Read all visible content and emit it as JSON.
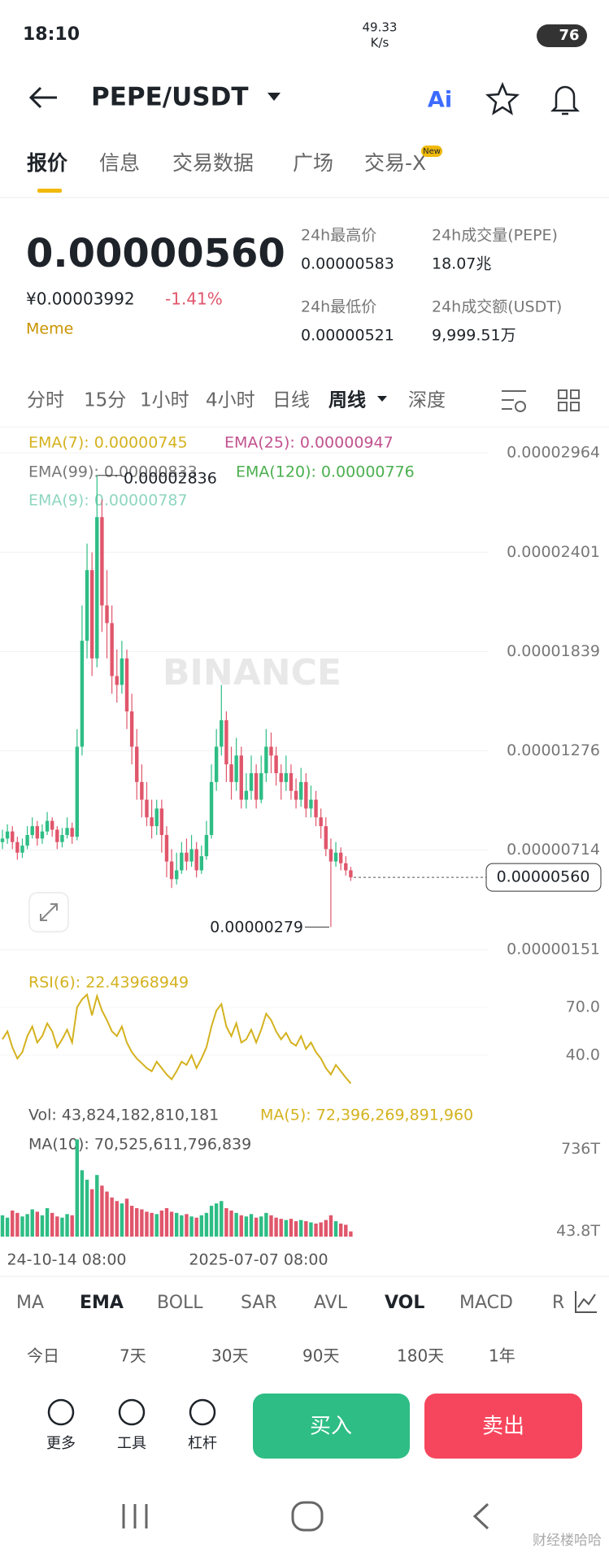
{
  "status": {
    "time": "18:10",
    "speed": "49.33",
    "speed_unit": "K/s",
    "battery": "76"
  },
  "header": {
    "pair": "PEPE/USDT",
    "ai": "Ai"
  },
  "tabs": [
    "报价",
    "信息",
    "交易数据",
    "广场",
    "交易-X"
  ],
  "new_badge": "New",
  "ticker": {
    "price": "0.00000560",
    "cny": "¥0.00003992",
    "change": "-1.41%",
    "tag": "Meme",
    "stats": [
      {
        "label": "24h最高价",
        "value": "0.00000583"
      },
      {
        "label": "24h成交量(PEPE)",
        "value": "18.07兆"
      },
      {
        "label": "24h最低价",
        "value": "0.00000521"
      },
      {
        "label": "24h成交额(USDT)",
        "value": "9,999.51万"
      }
    ]
  },
  "intervals": [
    "分时",
    "15分",
    "1小时",
    "4小时",
    "日线",
    "周线",
    "深度"
  ],
  "watermark": "BINANCE",
  "chart_data": [
    {
      "type": "candlestick",
      "up_color": "#2ebd85",
      "down_color": "#e0566b",
      "grid": true,
      "ema_labels": [
        {
          "text": "EMA(7): 0.00000745",
          "color": "#d4b21f"
        },
        {
          "text": "EMA(25): 0.00000947",
          "color": "#c2528e"
        },
        {
          "text": "EMA(99): 0.00000833",
          "color": "#777777"
        },
        {
          "text": "EMA(120): 0.00000776",
          "color": "#4caf50"
        },
        {
          "text": "EMA(9): 0.00000787",
          "color": "#8fd6c0"
        }
      ],
      "ylim": [
        1.51e-06,
        2.964e-05
      ],
      "yticks": [
        {
          "value": 2.964e-05,
          "label": "0.00002964"
        },
        {
          "value": 2.401e-05,
          "label": "0.00002401"
        },
        {
          "value": 1.839e-05,
          "label": "0.00001839"
        },
        {
          "value": 1.276e-05,
          "label": "0.00001276"
        },
        {
          "value": 7.14e-06,
          "label": "0.00000714"
        },
        {
          "value": 1.51e-06,
          "label": "0.00000151"
        }
      ],
      "max_label": {
        "value": 2.836e-05,
        "label": "0.00002836"
      },
      "min_label": {
        "value": 2.79e-06,
        "label": "0.00000279"
      },
      "last_price": {
        "value": 5.6e-06,
        "label": "0.00000560"
      },
      "x_labels": [
        "24-10-14 08:00",
        "2025-07-07 08:00"
      ],
      "candles": [
        [
          7.6e-06,
          8.3e-06,
          7.2e-06,
          7.8e-06
        ],
        [
          7.8e-06,
          8.6e-06,
          7.5e-06,
          8.2e-06
        ],
        [
          8.2e-06,
          8.5e-06,
          7.2e-06,
          7.6e-06
        ],
        [
          7.6e-06,
          7.9e-06,
          6.6e-06,
          7e-06
        ],
        [
          7e-06,
          7.8e-06,
          6.7e-06,
          7.4e-06
        ],
        [
          7.4e-06,
          8.5e-06,
          7.2e-06,
          8e-06
        ],
        [
          8e-06,
          9e-06,
          7.8e-06,
          8.5e-06
        ],
        [
          8.5e-06,
          8.8e-06,
          7.4e-06,
          7.8e-06
        ],
        [
          7.8e-06,
          8.6e-06,
          7.5e-06,
          8.2e-06
        ],
        [
          8.2e-06,
          9.3e-06,
          8e-06,
          8.8e-06
        ],
        [
          8.8e-06,
          9e-06,
          7.9e-06,
          8.3e-06
        ],
        [
          8.3e-06,
          8.5e-06,
          7.2e-06,
          7.6e-06
        ],
        [
          7.6e-06,
          8.4e-06,
          7.3e-06,
          8e-06
        ],
        [
          8e-06,
          9e-06,
          7.8e-06,
          8.4e-06
        ],
        [
          8.4e-06,
          8.7e-06,
          7.5e-06,
          7.9e-06
        ],
        [
          7.9e-06,
          1.4e-05,
          7.7e-06,
          1.3e-05
        ],
        [
          1.3e-05,
          2.1e-05,
          1.25e-05,
          1.9e-05
        ],
        [
          1.9e-05,
          2.45e-05,
          1.8e-05,
          2.3e-05
        ],
        [
          2.3e-05,
          2.4e-05,
          1.7e-05,
          1.8e-05
        ],
        [
          1.8e-05,
          2.836e-05,
          1.75e-05,
          2.6e-05
        ],
        [
          2.6e-05,
          2.7e-05,
          1.95e-05,
          2.1e-05
        ],
        [
          2.1e-05,
          2.3e-05,
          1.8e-05,
          2e-05
        ],
        [
          2e-05,
          2.1e-05,
          1.6e-05,
          1.7e-05
        ],
        [
          1.7e-05,
          1.85e-05,
          1.55e-05,
          1.65e-05
        ],
        [
          1.65e-05,
          1.9e-05,
          1.6e-05,
          1.8e-05
        ],
        [
          1.8e-05,
          1.85e-05,
          1.4e-05,
          1.5e-05
        ],
        [
          1.5e-05,
          1.6e-05,
          1.2e-05,
          1.3e-05
        ],
        [
          1.3e-05,
          1.4e-05,
          1e-05,
          1.1e-05
        ],
        [
          1.1e-05,
          1.2e-05,
          9e-06,
          1e-05
        ],
        [
          1e-05,
          1.1e-05,
          8.5e-06,
          9e-06
        ],
        [
          9e-06,
          1e-05,
          7.8e-06,
          8.5e-06
        ],
        [
          8.5e-06,
          1e-05,
          8e-06,
          9.5e-06
        ],
        [
          9.5e-06,
          1e-05,
          7e-06,
          8e-06
        ],
        [
          8e-06,
          8.5e-06,
          5.6e-06,
          6.5e-06
        ],
        [
          6.5e-06,
          7.2e-06,
          5e-06,
          5.5e-06
        ],
        [
          5.5e-06,
          7e-06,
          5.2e-06,
          6e-06
        ],
        [
          6e-06,
          7.6e-06,
          5.8e-06,
          7e-06
        ],
        [
          7e-06,
          7.8e-06,
          6e-06,
          6.5e-06
        ],
        [
          6.5e-06,
          8e-06,
          6.2e-06,
          7.2e-06
        ],
        [
          7.2e-06,
          7.6e-06,
          5.6e-06,
          6e-06
        ],
        [
          6e-06,
          7.4e-06,
          5.8e-06,
          6.8e-06
        ],
        [
          6.8e-06,
          8.8e-06,
          6.6e-06,
          8e-06
        ],
        [
          8e-06,
          1.2e-05,
          7.8e-06,
          1.1e-05
        ],
        [
          1.1e-05,
          1.4e-05,
          1.05e-05,
          1.3e-05
        ],
        [
          1.3e-05,
          1.65e-05,
          1.25e-05,
          1.45e-05
        ],
        [
          1.45e-05,
          1.5e-05,
          1.1e-05,
          1.2e-05
        ],
        [
          1.2e-05,
          1.3e-05,
          1e-05,
          1.1e-05
        ],
        [
          1.1e-05,
          1.35e-05,
          1.05e-05,
          1.25e-05
        ],
        [
          1.25e-05,
          1.3e-05,
          9.5e-06,
          1e-05
        ],
        [
          1e-05,
          1.15e-05,
          9.5e-06,
          1.05e-05
        ],
        [
          1.05e-05,
          1.25e-05,
          1e-05,
          1.15e-05
        ],
        [
          1.15e-05,
          1.2e-05,
          9.5e-06,
          1e-05
        ],
        [
          1e-05,
          1.25e-05,
          9.8e-06,
          1.15e-05
        ],
        [
          1.15e-05,
          1.4e-05,
          1.1e-05,
          1.3e-05
        ],
        [
          1.3e-05,
          1.38e-05,
          1.15e-05,
          1.25e-05
        ],
        [
          1.25e-05,
          1.3e-05,
          1.08e-05,
          1.15e-05
        ],
        [
          1.15e-05,
          1.2e-05,
          1e-05,
          1.1e-05
        ],
        [
          1.1e-05,
          1.25e-05,
          1.05e-05,
          1.15e-05
        ],
        [
          1.15e-05,
          1.2e-05,
          1e-05,
          1.05e-05
        ],
        [
          1.05e-05,
          1.12e-05,
          9.5e-06,
          1e-05
        ],
        [
          1e-05,
          1.18e-05,
          9.6e-06,
          1.1e-05
        ],
        [
          1.1e-05,
          1.15e-05,
          9e-06,
          9.5e-06
        ],
        [
          9.5e-06,
          1.08e-05,
          9e-06,
          1e-05
        ],
        [
          1e-05,
          1.05e-05,
          8.5e-06,
          9e-06
        ],
        [
          9e-06,
          9.5e-06,
          7.8e-06,
          8.5e-06
        ],
        [
          8.5e-06,
          9e-06,
          6.8e-06,
          7.2e-06
        ],
        [
          7.2e-06,
          7.8e-06,
          2.79e-06,
          6.5e-06
        ],
        [
          6.5e-06,
          7.6e-06,
          6.2e-06,
          7e-06
        ],
        [
          7e-06,
          7.3e-06,
          6e-06,
          6.4e-06
        ],
        [
          6.4e-06,
          6.8e-06,
          5.7e-06,
          6e-06
        ],
        [
          6e-06,
          6.2e-06,
          5.4e-06,
          5.6e-06
        ]
      ]
    },
    {
      "type": "line",
      "title": "RSI(6): 22.43968949",
      "color": "#d4b21f",
      "ylim": [
        10,
        85
      ],
      "yticks": [
        {
          "value": 70,
          "label": "70.0"
        },
        {
          "value": 40,
          "label": "40.0"
        }
      ],
      "values": [
        50,
        55,
        45,
        38,
        42,
        52,
        58,
        48,
        52,
        60,
        55,
        45,
        50,
        56,
        48,
        70,
        75,
        78,
        65,
        77,
        68,
        62,
        55,
        52,
        58,
        48,
        42,
        38,
        35,
        32,
        30,
        36,
        32,
        28,
        25,
        30,
        36,
        34,
        40,
        32,
        38,
        45,
        58,
        68,
        72,
        58,
        52,
        60,
        48,
        50,
        56,
        48,
        56,
        66,
        62,
        55,
        50,
        54,
        48,
        46,
        52,
        44,
        48,
        42,
        38,
        32,
        28,
        34,
        30,
        26,
        22.43968949
      ]
    },
    {
      "type": "bar",
      "vol_label": "Vol: 43,824,182,810,181",
      "ma5_label": "MA(5): 72,396,269,891,960",
      "ma10_label": "MA(10): 70,525,611,796,839",
      "ylim": [
        0,
        830
      ],
      "yticks": [
        {
          "value": 736,
          "label": "736T"
        },
        {
          "value": 43.8,
          "label": "43.8T"
        }
      ],
      "values": [
        180,
        160,
        220,
        200,
        170,
        190,
        230,
        210,
        180,
        240,
        200,
        170,
        160,
        190,
        180,
        820,
        560,
        480,
        400,
        520,
        430,
        380,
        330,
        300,
        280,
        320,
        260,
        240,
        230,
        210,
        200,
        190,
        220,
        240,
        210,
        200,
        180,
        190,
        170,
        160,
        180,
        200,
        260,
        280,
        300,
        240,
        220,
        200,
        180,
        170,
        190,
        160,
        170,
        200,
        180,
        160,
        150,
        140,
        150,
        130,
        140,
        130,
        120,
        110,
        120,
        140,
        180,
        130,
        110,
        100,
        43.8
      ]
    }
  ],
  "indicators": [
    "MA",
    "EMA",
    "BOLL",
    "SAR",
    "AVL",
    "VOL",
    "MACD",
    "R"
  ],
  "periods": [
    "今日",
    "7天",
    "30天",
    "90天",
    "180天",
    "1年"
  ],
  "actions": [
    "更多",
    "工具",
    "杠杆"
  ],
  "buy": "买入",
  "sell": "卖出",
  "footer_mark": "财经楼哈哈"
}
